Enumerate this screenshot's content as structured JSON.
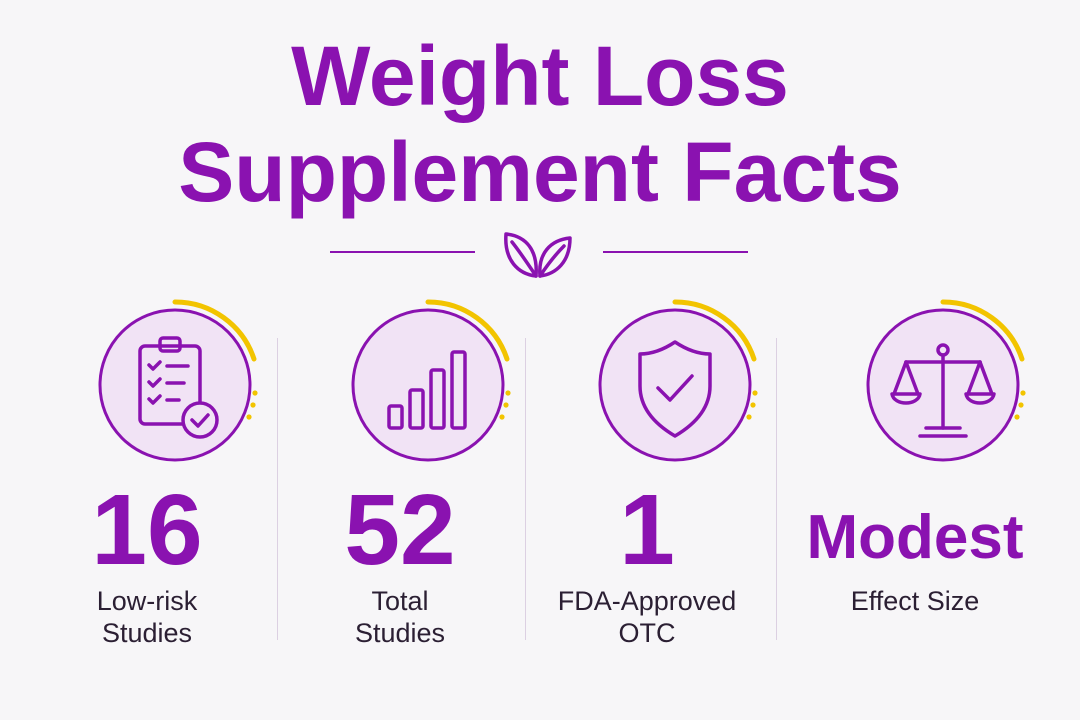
{
  "title": {
    "line1": "Weight Loss",
    "line2": "Supplement Facts"
  },
  "colors": {
    "primary": "#8a12b0",
    "badge_fill": "#f1e3f5",
    "accent_arc": "#f2c400",
    "text": "#2b1f33",
    "background": "#f7f6f8"
  },
  "stats": [
    {
      "icon": "clipboard-check-icon",
      "value": "16",
      "label": "Low-risk\nStudies"
    },
    {
      "icon": "bar-chart-icon",
      "value": "52",
      "label": "Total\nStudies"
    },
    {
      "icon": "shield-check-icon",
      "value": "1",
      "label": "FDA-Approved\nOTC"
    },
    {
      "icon": "balance-scale-icon",
      "value": "Modest",
      "label": "Effect Size"
    }
  ]
}
